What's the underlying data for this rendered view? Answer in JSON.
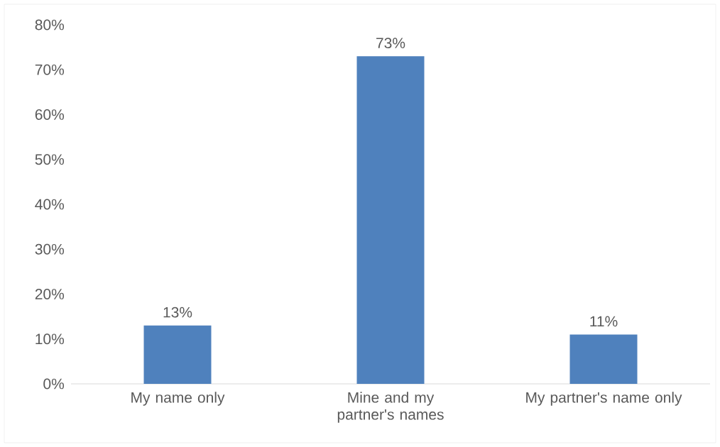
{
  "chart_data": {
    "type": "bar",
    "categories": [
      "My name only",
      "Mine and my partner's names",
      "My partner's name only"
    ],
    "values": [
      13,
      73,
      11
    ],
    "value_labels": [
      "13%",
      "73%",
      "11%"
    ],
    "color": "#4f81bd",
    "ylim": [
      0,
      80
    ],
    "yticks": [
      {
        "value": 0,
        "label": "0%"
      },
      {
        "value": 10,
        "label": "10%"
      },
      {
        "value": 20,
        "label": "20%"
      },
      {
        "value": 30,
        "label": "30%"
      },
      {
        "value": 40,
        "label": "40%"
      },
      {
        "value": 50,
        "label": "50%"
      },
      {
        "value": 60,
        "label": "60%"
      },
      {
        "value": 70,
        "label": "70%"
      },
      {
        "value": 80,
        "label": "80%"
      }
    ],
    "legend": false
  }
}
